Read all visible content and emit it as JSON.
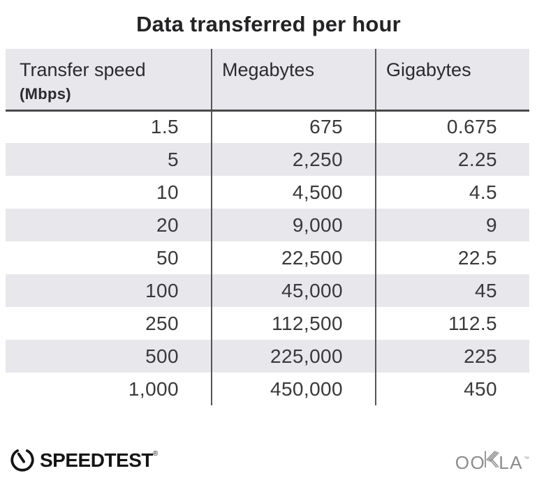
{
  "title": "Data transferred per hour",
  "table": {
    "columns": [
      {
        "label": "Transfer speed",
        "sublabel": "(Mbps)"
      },
      {
        "label": "Megabytes"
      },
      {
        "label": "Gigabytes"
      }
    ],
    "rows": [
      [
        "1.5",
        "675",
        "0.675"
      ],
      [
        "5",
        "2,250",
        "2.25"
      ],
      [
        "10",
        "4,500",
        "4.5"
      ],
      [
        "20",
        "9,000",
        "9"
      ],
      [
        "50",
        "22,500",
        "22.5"
      ],
      [
        "100",
        "45,000",
        "45"
      ],
      [
        "250",
        "112,500",
        "112.5"
      ],
      [
        "500",
        "225,000",
        "225"
      ],
      [
        "1,000",
        "450,000",
        "450"
      ]
    ]
  },
  "chart_data": {
    "type": "table",
    "title": "Data transferred per hour",
    "columns": [
      "Transfer speed (Mbps)",
      "Megabytes",
      "Gigabytes"
    ],
    "rows": [
      [
        1.5,
        675,
        0.675
      ],
      [
        5,
        2250,
        2.25
      ],
      [
        10,
        4500,
        4.5
      ],
      [
        20,
        9000,
        9
      ],
      [
        50,
        22500,
        22.5
      ],
      [
        100,
        45000,
        45
      ],
      [
        250,
        112500,
        112.5
      ],
      [
        500,
        225000,
        225
      ],
      [
        1000,
        450000,
        450
      ]
    ]
  },
  "footer": {
    "speedtest_label": "SPEEDTEST",
    "speedtest_trademark": "®",
    "ookla_left": "OO",
    "ookla_right": "LA",
    "ookla_trademark": "™"
  },
  "colors": {
    "header_bg": "#e8e8ec",
    "stripe_bg": "#e8e8ec",
    "divider": "#56565a",
    "header_rule": "#48484a",
    "title_text": "#232325",
    "body_text": "#39393b",
    "logo_black": "#141414",
    "ookla_gray": "#8c8c8e"
  }
}
